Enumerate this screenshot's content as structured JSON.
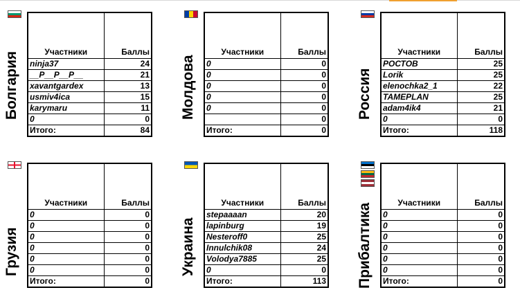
{
  "headers": {
    "participants": "Участники",
    "points": "Баллы"
  },
  "panels": [
    {
      "country": "Болгария",
      "flag_colors": [
        [
          "#ffffff",
          "#00966e",
          "#d62612"
        ]
      ],
      "flag_name": "bulgaria-flag-icon",
      "rows": [
        [
          "ninja37",
          "24"
        ],
        [
          "__P__P__P__",
          "21"
        ],
        [
          "xavantgardex",
          "13"
        ],
        [
          "usmiv4ica",
          "15"
        ],
        [
          "karymaru",
          "11"
        ],
        [
          "0",
          "0"
        ]
      ],
      "total_label": "Итого:",
      "total": "84"
    },
    {
      "country": "Молдова",
      "flag_colors": [
        [
          "#003da5",
          "#ffd200",
          "#cc092f"
        ]
      ],
      "flag_name": "moldova-flag-icon",
      "vertical": true,
      "rows": [
        [
          "0",
          "0"
        ],
        [
          "0",
          "0"
        ],
        [
          "0",
          "0"
        ],
        [
          "0",
          "0"
        ],
        [
          "0",
          "0"
        ],
        [
          "",
          "0"
        ]
      ],
      "total_label": "Итого:",
      "total": "0"
    },
    {
      "country": "Россия",
      "flag_colors": [
        [
          "#ffffff",
          "#0039a6",
          "#d52b1e"
        ]
      ],
      "flag_name": "russia-flag-icon",
      "rows": [
        [
          "РОСТОВ",
          "25"
        ],
        [
          "Lorik",
          "25"
        ],
        [
          "elenochka2_1",
          "22"
        ],
        [
          "TAMEPLAN",
          "25"
        ],
        [
          "adam4ik4",
          "21"
        ],
        [
          "0",
          "0"
        ]
      ],
      "total_label": "Итого:",
      "total": "118"
    },
    {
      "country": "Грузия",
      "flag_colors": [
        [
          "georgia"
        ]
      ],
      "flag_name": "georgia-flag-icon",
      "rows": [
        [
          "0",
          "0"
        ],
        [
          "0",
          "0"
        ],
        [
          "0",
          "0"
        ],
        [
          "0",
          "0"
        ],
        [
          "0",
          "0"
        ],
        [
          "0",
          "0"
        ]
      ],
      "total_label": "Итого:",
      "total": "0"
    },
    {
      "country": "Украина",
      "flag_colors": [
        [
          "#0057b7",
          "#ffd700"
        ]
      ],
      "flag_name": "ukraine-flag-icon",
      "rows": [
        [
          "stepaaaan",
          "20"
        ],
        [
          "lapinburg",
          "19"
        ],
        [
          "Nesteroff0",
          "25"
        ],
        [
          "Innulchik08",
          "24"
        ],
        [
          "Volodya7885",
          "25"
        ],
        [
          "0",
          "0"
        ]
      ],
      "total_label": "Итого:",
      "total": "113"
    },
    {
      "country": "Прибалтика",
      "flag_colors": [
        [
          "#0072ce",
          "#000000",
          "#ffffff"
        ],
        [
          "#fdb913",
          "#006a44",
          "#c1272d"
        ],
        [
          "#9e3039",
          "#ffffff",
          "#9e3039"
        ]
      ],
      "flag_name": "baltic-flags-icon",
      "rows": [
        [
          "0",
          "0"
        ],
        [
          "0",
          "0"
        ],
        [
          "0",
          "0"
        ],
        [
          "0",
          "0"
        ],
        [
          "0",
          "0"
        ],
        [
          "0",
          "0"
        ]
      ],
      "total_label": "Итого:",
      "total": "0"
    }
  ]
}
